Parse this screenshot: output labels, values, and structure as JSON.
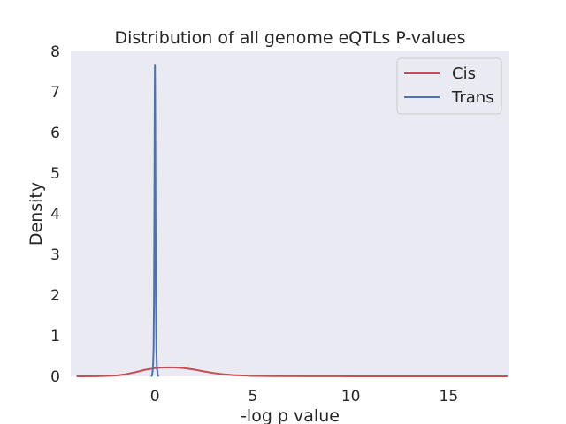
{
  "chart_data": {
    "type": "line",
    "title": "Distribution of all genome eQTLs P-values",
    "xlabel": "-log p value",
    "ylabel": "Density",
    "xlim": [
      -4.3,
      18.1
    ],
    "ylim": [
      0,
      8
    ],
    "xticks": [
      0,
      5,
      10,
      15
    ],
    "yticks": [
      0,
      1,
      2,
      3,
      4,
      5,
      6,
      7,
      8
    ],
    "grid": false,
    "background": "#eaeaf2",
    "legend_position": "top-right",
    "series": [
      {
        "name": "Cis",
        "color": "#c44e52",
        "x": [
          -4.0,
          -3.0,
          -2.0,
          -1.5,
          -1.0,
          -0.5,
          0.0,
          0.3,
          0.7,
          1.0,
          1.5,
          2.0,
          2.5,
          3.0,
          3.5,
          4.0,
          5.0,
          6.0,
          8.0,
          10.0,
          12.0,
          15.0,
          18.0
        ],
        "y": [
          0.0,
          0.002,
          0.02,
          0.05,
          0.1,
          0.16,
          0.2,
          0.215,
          0.22,
          0.218,
          0.2,
          0.165,
          0.12,
          0.08,
          0.05,
          0.03,
          0.012,
          0.005,
          0.002,
          0.001,
          0.0005,
          0.0002,
          0.0
        ]
      },
      {
        "name": "Trans",
        "color": "#4c72b0",
        "x": [
          -0.2,
          -0.15,
          -0.1,
          -0.07,
          -0.05,
          -0.03,
          -0.01,
          0.0,
          0.01,
          0.03,
          0.05,
          0.07,
          0.1,
          0.15,
          0.2
        ],
        "y": [
          0.0,
          0.02,
          0.2,
          0.7,
          1.8,
          4.0,
          6.9,
          7.65,
          6.9,
          4.0,
          1.8,
          0.7,
          0.2,
          0.02,
          0.0
        ]
      }
    ]
  }
}
